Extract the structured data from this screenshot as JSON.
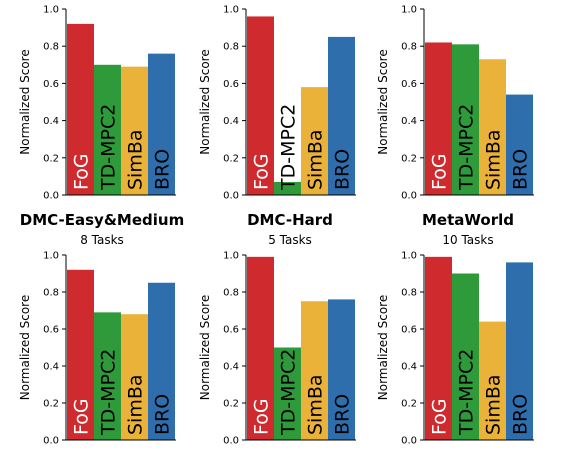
{
  "groups": [
    {
      "title": "DMC-Easy&Medium",
      "subtitle": "8 Tasks"
    },
    {
      "title": "DMC-Hard",
      "subtitle": "5 Tasks"
    },
    {
      "title": "MetaWorld",
      "subtitle": "10 Tasks"
    }
  ],
  "colors": {
    "FoG": "#cf2a2d",
    "TD-MPC2": "#2e9a3a",
    "SimBa": "#ebb23a",
    "BRO": "#2f6ead"
  },
  "chart_data": [
    {
      "type": "bar",
      "categories": [
        "FoG",
        "TD-MPC2",
        "SimBa",
        "BRO"
      ],
      "values": [
        0.92,
        0.7,
        0.69,
        0.76
      ],
      "ylabel": "Normalized Score",
      "ylim": [
        0,
        1
      ],
      "yticks": [
        "0.0",
        "0.2",
        "0.4",
        "0.6",
        "0.8",
        "1.0"
      ]
    },
    {
      "type": "bar",
      "categories": [
        "FoG",
        "TD-MPC2",
        "SimBa",
        "BRO"
      ],
      "values": [
        0.96,
        0.07,
        0.58,
        0.85
      ],
      "ylabel": "Normalized Score",
      "ylim": [
        0,
        1
      ],
      "yticks": [
        "0.0",
        "0.2",
        "0.4",
        "0.6",
        "0.8",
        "1.0"
      ]
    },
    {
      "type": "bar",
      "categories": [
        "FoG",
        "TD-MPC2",
        "SimBa",
        "BRO"
      ],
      "values": [
        0.82,
        0.81,
        0.73,
        0.54
      ],
      "ylabel": "Normalized Score",
      "ylim": [
        0,
        1
      ],
      "yticks": [
        "0.0",
        "0.2",
        "0.4",
        "0.6",
        "0.8",
        "1.0"
      ]
    },
    {
      "type": "bar",
      "categories": [
        "FoG",
        "TD-MPC2",
        "SimBa",
        "BRO"
      ],
      "values": [
        0.92,
        0.69,
        0.68,
        0.85
      ],
      "ylabel": "Normalized Score",
      "ylim": [
        0,
        1
      ],
      "yticks": [
        "0.0",
        "0.2",
        "0.4",
        "0.6",
        "0.8",
        "1.0"
      ]
    },
    {
      "type": "bar",
      "categories": [
        "FoG",
        "TD-MPC2",
        "SimBa",
        "BRO"
      ],
      "values": [
        0.99,
        0.5,
        0.75,
        0.76
      ],
      "ylabel": "Normalized Score",
      "ylim": [
        0,
        1
      ],
      "yticks": [
        "0.0",
        "0.2",
        "0.4",
        "0.6",
        "0.8",
        "1.0"
      ]
    },
    {
      "type": "bar",
      "categories": [
        "FoG",
        "TD-MPC2",
        "SimBa",
        "BRO"
      ],
      "values": [
        0.99,
        0.9,
        0.64,
        0.96
      ],
      "ylabel": "Normalized Score",
      "ylim": [
        0,
        1
      ],
      "yticks": [
        "0.0",
        "0.2",
        "0.4",
        "0.6",
        "0.8",
        "1.0"
      ]
    }
  ]
}
